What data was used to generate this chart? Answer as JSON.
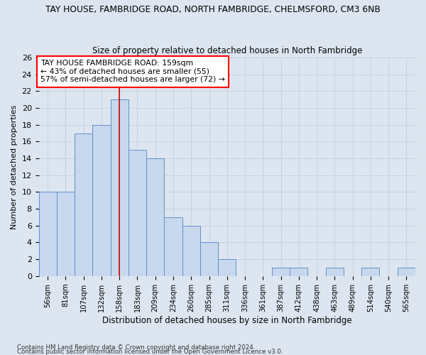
{
  "title": "TAY HOUSE, FAMBRIDGE ROAD, NORTH FAMBRIDGE, CHELMSFORD, CM3 6NB",
  "subtitle": "Size of property relative to detached houses in North Fambridge",
  "xlabel": "Distribution of detached houses by size in North Fambridge",
  "ylabel": "Number of detached properties",
  "categories": [
    "56sqm",
    "81sqm",
    "107sqm",
    "132sqm",
    "158sqm",
    "183sqm",
    "209sqm",
    "234sqm",
    "260sqm",
    "285sqm",
    "311sqm",
    "336sqm",
    "361sqm",
    "387sqm",
    "412sqm",
    "438sqm",
    "463sqm",
    "489sqm",
    "514sqm",
    "540sqm",
    "565sqm"
  ],
  "values": [
    10,
    10,
    17,
    18,
    21,
    15,
    14,
    7,
    6,
    4,
    2,
    0,
    0,
    1,
    1,
    0,
    1,
    0,
    1,
    0,
    1
  ],
  "bar_color": "#c8d8ee",
  "bar_edge_color": "#6090c8",
  "marker_bar_index": 4,
  "marker_line_color": "#cc0000",
  "annotation_line0": "TAY HOUSE FAMBRIDGE ROAD: 159sqm",
  "annotation_line1": "← 43% of detached houses are smaller (55)",
  "annotation_line2": "57% of semi-detached houses are larger (72) →",
  "ylim": [
    0,
    26
  ],
  "yticks": [
    0,
    2,
    4,
    6,
    8,
    10,
    12,
    14,
    16,
    18,
    20,
    22,
    24,
    26
  ],
  "grid_color": "#c8d0e0",
  "bg_color": "#dde6f0",
  "footnote1": "Contains HM Land Registry data © Crown copyright and database right 2024.",
  "footnote2": "Contains public sector information licensed under the Open Government Licence v3.0."
}
